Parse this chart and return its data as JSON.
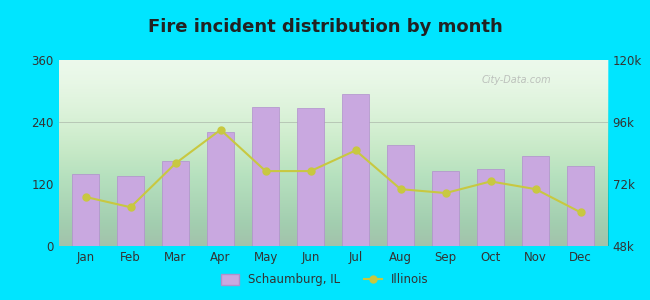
{
  "title": "Fire incident distribution by month",
  "months": [
    "Jan",
    "Feb",
    "Mar",
    "Apr",
    "May",
    "Jun",
    "Jul",
    "Aug",
    "Sep",
    "Oct",
    "Nov",
    "Dec"
  ],
  "bar_values": [
    140,
    135,
    165,
    220,
    270,
    268,
    295,
    195,
    145,
    150,
    175,
    155
  ],
  "line_values": [
    67000,
    63000,
    80000,
    93000,
    77000,
    77000,
    85000,
    70000,
    68500,
    73000,
    70000,
    61000
  ],
  "bar_color": "#c9a8e0",
  "bar_edgecolor": "#b090cc",
  "line_color": "#c8c840",
  "line_marker": "o",
  "line_marker_color": "#c8c840",
  "background_color_top": "#e8f5e8",
  "background_color_bottom": "#f0ffe0",
  "yleft_min": 0,
  "yleft_max": 360,
  "yleft_ticks": [
    0,
    120,
    240,
    360
  ],
  "yright_min": 48000,
  "yright_max": 120000,
  "yright_ticks": [
    48000,
    72000,
    96000,
    120000
  ],
  "yright_tick_labels": [
    "48k",
    "72k",
    "96k",
    "120k"
  ],
  "legend_schaumburg": "Schaumburg, IL",
  "legend_illinois": "Illinois",
  "watermark": "City-Data.com",
  "outer_bg": "#00e5ff",
  "plot_bg_gradient_top": "#dff5e0",
  "plot_bg_gradient_bottom": "#f5ffe8"
}
